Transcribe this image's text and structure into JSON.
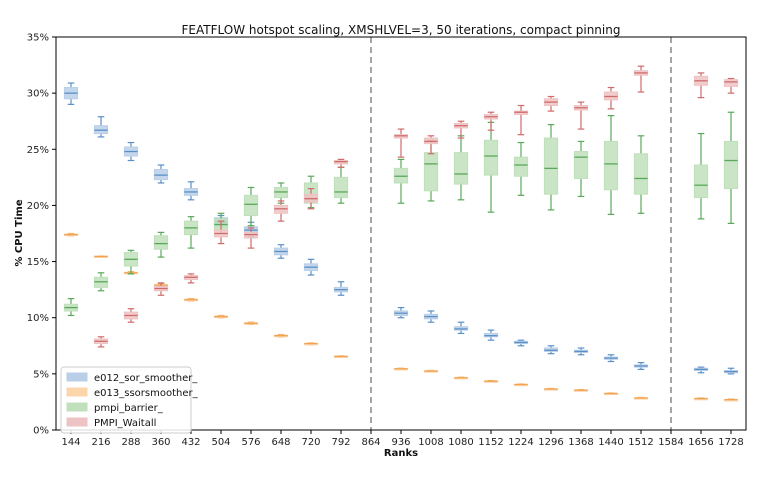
{
  "chart_data": {
    "type": "box",
    "title": "FEATFLOW hotspot scaling, XMSHLVEL=3, 50 iterations, compact pinning",
    "xlabel": "Ranks",
    "ylabel": "% CPU Time",
    "categories": [
      "144",
      "216",
      "288",
      "360",
      "432",
      "504",
      "576",
      "648",
      "720",
      "792",
      "864",
      "936",
      "1008",
      "1080",
      "1152",
      "1224",
      "1296",
      "1368",
      "1440",
      "1512",
      "1584",
      "1656",
      "1728"
    ],
    "ylim": [
      0,
      35
    ],
    "yticks": [
      0,
      5,
      10,
      15,
      20,
      25,
      30,
      35
    ],
    "ytick_labels": [
      "0%",
      "5%",
      "10%",
      "15%",
      "20%",
      "25%",
      "30%",
      "35%"
    ],
    "vertical_dashed_lines_at": [
      "864",
      "1584"
    ],
    "legend_position": "bottom-left",
    "series": [
      {
        "name": "e012_sor_smoother_",
        "color": "#5b8fc7",
        "fill": "#b9cfe8",
        "boxes": [
          {
            "x": "144",
            "whislo": 29.0,
            "q1": 29.5,
            "med": 30.0,
            "q3": 30.5,
            "whishi": 30.9
          },
          {
            "x": "216",
            "whislo": 26.1,
            "q1": 26.4,
            "med": 26.7,
            "q3": 27.1,
            "whishi": 27.9
          },
          {
            "x": "288",
            "whislo": 24.0,
            "q1": 24.4,
            "med": 24.8,
            "q3": 25.2,
            "whishi": 25.6
          },
          {
            "x": "360",
            "whislo": 22.0,
            "q1": 22.3,
            "med": 22.7,
            "q3": 23.2,
            "whishi": 23.6
          },
          {
            "x": "432",
            "whislo": 20.5,
            "q1": 20.9,
            "med": 21.2,
            "q3": 21.5,
            "whishi": 22.1
          },
          {
            "x": "504",
            "whislo": 17.8,
            "q1": 18.1,
            "med": 18.5,
            "q3": 18.9,
            "whishi": 19.1
          },
          {
            "x": "576",
            "whislo": 17.2,
            "q1": 17.5,
            "med": 17.8,
            "q3": 18.1,
            "whishi": 18.5
          },
          {
            "x": "648",
            "whislo": 15.3,
            "q1": 15.6,
            "med": 15.9,
            "q3": 16.2,
            "whishi": 16.5
          },
          {
            "x": "720",
            "whislo": 13.8,
            "q1": 14.2,
            "med": 14.5,
            "q3": 14.8,
            "whishi": 15.2
          },
          {
            "x": "792",
            "whislo": 12.0,
            "q1": 12.3,
            "med": 12.5,
            "q3": 12.7,
            "whishi": 13.2
          },
          {
            "x": "936",
            "whislo": 10.0,
            "q1": 10.2,
            "med": 10.4,
            "q3": 10.6,
            "whishi": 10.9
          },
          {
            "x": "1008",
            "whislo": 9.6,
            "q1": 9.9,
            "med": 10.1,
            "q3": 10.3,
            "whishi": 10.6
          },
          {
            "x": "1080",
            "whislo": 8.6,
            "q1": 8.9,
            "med": 9.0,
            "q3": 9.2,
            "whishi": 9.6
          },
          {
            "x": "1152",
            "whislo": 8.0,
            "q1": 8.3,
            "med": 8.4,
            "q3": 8.6,
            "whishi": 8.9
          },
          {
            "x": "1224",
            "whislo": 7.5,
            "q1": 7.7,
            "med": 7.8,
            "q3": 7.9,
            "whishi": 8.0
          },
          {
            "x": "1296",
            "whislo": 6.8,
            "q1": 7.0,
            "med": 7.1,
            "q3": 7.3,
            "whishi": 7.5
          },
          {
            "x": "1368",
            "whislo": 6.7,
            "q1": 6.9,
            "med": 7.0,
            "q3": 7.1,
            "whishi": 7.3
          },
          {
            "x": "1440",
            "whislo": 6.1,
            "q1": 6.3,
            "med": 6.4,
            "q3": 6.5,
            "whishi": 6.7
          },
          {
            "x": "1512",
            "whislo": 5.4,
            "q1": 5.6,
            "med": 5.7,
            "q3": 5.8,
            "whishi": 6.0
          },
          {
            "x": "1656",
            "whislo": 5.1,
            "q1": 5.3,
            "med": 5.4,
            "q3": 5.5,
            "whishi": 5.6
          },
          {
            "x": "1728",
            "whislo": 5.0,
            "q1": 5.1,
            "med": 5.2,
            "q3": 5.3,
            "whishi": 5.5
          }
        ]
      },
      {
        "name": "e013_ssorsmoother_",
        "color": "#f0a24e",
        "fill": "#fcd5ad",
        "boxes": [
          {
            "x": "144",
            "whislo": 17.3,
            "q1": 17.35,
            "med": 17.4,
            "q3": 17.45,
            "whishi": 17.5
          },
          {
            "x": "216",
            "whislo": 15.4,
            "q1": 15.42,
            "med": 15.45,
            "q3": 15.5,
            "whishi": 15.5
          },
          {
            "x": "288",
            "whislo": 13.9,
            "q1": 13.95,
            "med": 14.0,
            "q3": 14.05,
            "whishi": 14.1
          },
          {
            "x": "360",
            "whislo": 12.8,
            "q1": 12.85,
            "med": 12.9,
            "q3": 12.95,
            "whishi": 13.0
          },
          {
            "x": "432",
            "whislo": 11.5,
            "q1": 11.55,
            "med": 11.6,
            "q3": 11.65,
            "whishi": 11.7
          },
          {
            "x": "504",
            "whislo": 10.0,
            "q1": 10.05,
            "med": 10.1,
            "q3": 10.15,
            "whishi": 10.2
          },
          {
            "x": "576",
            "whislo": 9.4,
            "q1": 9.45,
            "med": 9.5,
            "q3": 9.55,
            "whishi": 9.6
          },
          {
            "x": "648",
            "whislo": 8.3,
            "q1": 8.35,
            "med": 8.4,
            "q3": 8.45,
            "whishi": 8.5
          },
          {
            "x": "720",
            "whislo": 7.6,
            "q1": 7.65,
            "med": 7.7,
            "q3": 7.72,
            "whishi": 7.75
          },
          {
            "x": "792",
            "whislo": 6.5,
            "q1": 6.52,
            "med": 6.55,
            "q3": 6.58,
            "whishi": 6.6
          },
          {
            "x": "936",
            "whislo": 5.4,
            "q1": 5.42,
            "med": 5.45,
            "q3": 5.48,
            "whishi": 5.5
          },
          {
            "x": "1008",
            "whislo": 5.2,
            "q1": 5.22,
            "med": 5.25,
            "q3": 5.28,
            "whishi": 5.3
          },
          {
            "x": "1080",
            "whislo": 4.6,
            "q1": 4.62,
            "med": 4.65,
            "q3": 4.68,
            "whishi": 4.7
          },
          {
            "x": "1152",
            "whislo": 4.3,
            "q1": 4.32,
            "med": 4.35,
            "q3": 4.38,
            "whishi": 4.4
          },
          {
            "x": "1224",
            "whislo": 4.0,
            "q1": 4.02,
            "med": 4.05,
            "q3": 4.08,
            "whishi": 4.1
          },
          {
            "x": "1296",
            "whislo": 3.6,
            "q1": 3.62,
            "med": 3.65,
            "q3": 3.68,
            "whishi": 3.7
          },
          {
            "x": "1368",
            "whislo": 3.5,
            "q1": 3.52,
            "med": 3.55,
            "q3": 3.58,
            "whishi": 3.6
          },
          {
            "x": "1440",
            "whislo": 3.2,
            "q1": 3.22,
            "med": 3.25,
            "q3": 3.28,
            "whishi": 3.3
          },
          {
            "x": "1512",
            "whislo": 2.8,
            "q1": 2.82,
            "med": 2.85,
            "q3": 2.88,
            "whishi": 2.9
          },
          {
            "x": "1656",
            "whislo": 2.75,
            "q1": 2.77,
            "med": 2.8,
            "q3": 2.82,
            "whishi": 2.85
          },
          {
            "x": "1728",
            "whislo": 2.65,
            "q1": 2.67,
            "med": 2.7,
            "q3": 2.72,
            "whishi": 2.75
          }
        ]
      },
      {
        "name": "pmpi_barrier_",
        "color": "#5aa85a",
        "fill": "#bfe0bb",
        "boxes": [
          {
            "x": "144",
            "whislo": 10.2,
            "q1": 10.6,
            "med": 10.9,
            "q3": 11.2,
            "whishi": 11.7
          },
          {
            "x": "216",
            "whislo": 12.4,
            "q1": 12.7,
            "med": 13.2,
            "q3": 13.6,
            "whishi": 14.0
          },
          {
            "x": "288",
            "whislo": 13.9,
            "q1": 14.6,
            "med": 15.2,
            "q3": 15.8,
            "whishi": 16.0
          },
          {
            "x": "360",
            "whislo": 15.4,
            "q1": 16.1,
            "med": 16.6,
            "q3": 17.3,
            "whishi": 17.6
          },
          {
            "x": "432",
            "whislo": 16.2,
            "q1": 17.4,
            "med": 18.0,
            "q3": 18.6,
            "whishi": 19.0
          },
          {
            "x": "504",
            "whislo": 17.5,
            "q1": 17.8,
            "med": 18.3,
            "q3": 18.8,
            "whishi": 19.3
          },
          {
            "x": "576",
            "whislo": 18.2,
            "q1": 19.1,
            "med": 20.1,
            "q3": 20.9,
            "whishi": 21.6
          },
          {
            "x": "648",
            "whislo": 20.2,
            "q1": 20.7,
            "med": 21.2,
            "q3": 21.6,
            "whishi": 22.0
          },
          {
            "x": "720",
            "whislo": 19.8,
            "q1": 20.2,
            "med": 20.6,
            "q3": 22.0,
            "whishi": 22.6
          },
          {
            "x": "792",
            "whislo": 20.2,
            "q1": 20.7,
            "med": 21.2,
            "q3": 22.5,
            "whishi": 23.4
          },
          {
            "x": "936",
            "whislo": 20.2,
            "q1": 22.0,
            "med": 22.6,
            "q3": 23.3,
            "whishi": 24.1
          },
          {
            "x": "1008",
            "whislo": 20.4,
            "q1": 21.3,
            "med": 23.7,
            "q3": 24.7,
            "whishi": 25.8
          },
          {
            "x": "1080",
            "whislo": 20.5,
            "q1": 21.9,
            "med": 22.8,
            "q3": 24.7,
            "whishi": 26.2
          },
          {
            "x": "1152",
            "whislo": 19.4,
            "q1": 22.7,
            "med": 24.4,
            "q3": 25.8,
            "whishi": 27.4
          },
          {
            "x": "1224",
            "whislo": 20.9,
            "q1": 22.6,
            "med": 23.6,
            "q3": 24.3,
            "whishi": 25.6
          },
          {
            "x": "1296",
            "whislo": 19.6,
            "q1": 21.0,
            "med": 23.3,
            "q3": 26.0,
            "whishi": 27.2
          },
          {
            "x": "1368",
            "whislo": 20.8,
            "q1": 22.4,
            "med": 24.3,
            "q3": 24.8,
            "whishi": 25.7
          },
          {
            "x": "1440",
            "whislo": 19.2,
            "q1": 21.4,
            "med": 23.7,
            "q3": 25.7,
            "whishi": 28.0
          },
          {
            "x": "1512",
            "whislo": 19.3,
            "q1": 21.0,
            "med": 22.4,
            "q3": 24.6,
            "whishi": 26.2
          },
          {
            "x": "1656",
            "whislo": 18.8,
            "q1": 20.7,
            "med": 21.8,
            "q3": 23.6,
            "whishi": 26.4
          },
          {
            "x": "1728",
            "whislo": 18.4,
            "q1": 21.5,
            "med": 24.0,
            "q3": 25.7,
            "whishi": 28.3
          }
        ]
      },
      {
        "name": "PMPI_Waitall",
        "color": "#d06b6b",
        "fill": "#eec3c3",
        "boxes": [
          {
            "x": "216",
            "whislo": 7.4,
            "q1": 7.7,
            "med": 7.9,
            "q3": 8.1,
            "whishi": 8.3
          },
          {
            "x": "288",
            "whislo": 9.6,
            "q1": 9.9,
            "med": 10.2,
            "q3": 10.5,
            "whishi": 10.8
          },
          {
            "x": "360",
            "whislo": 12.0,
            "q1": 12.4,
            "med": 12.6,
            "q3": 12.8,
            "whishi": 13.1
          },
          {
            "x": "432",
            "whislo": 13.1,
            "q1": 13.4,
            "med": 13.6,
            "q3": 13.75,
            "whishi": 13.9
          },
          {
            "x": "504",
            "whislo": 16.6,
            "q1": 17.2,
            "med": 17.5,
            "q3": 17.8,
            "whishi": 18.6
          },
          {
            "x": "576",
            "whislo": 16.2,
            "q1": 17.1,
            "med": 17.4,
            "q3": 17.6,
            "whishi": 18.0
          },
          {
            "x": "648",
            "whislo": 18.6,
            "q1": 19.3,
            "med": 19.7,
            "q3": 20.0,
            "whishi": 20.4
          },
          {
            "x": "720",
            "whislo": 19.7,
            "q1": 20.3,
            "med": 20.6,
            "q3": 21.0,
            "whishi": 21.5
          },
          {
            "x": "792",
            "whislo": 23.4,
            "q1": 23.7,
            "med": 23.9,
            "q3": 24.0,
            "whishi": 24.1
          },
          {
            "x": "936",
            "whislo": 24.3,
            "q1": 26.0,
            "med": 26.2,
            "q3": 26.3,
            "whishi": 26.8
          },
          {
            "x": "1008",
            "whislo": 24.6,
            "q1": 25.5,
            "med": 25.7,
            "q3": 26.0,
            "whishi": 26.2
          },
          {
            "x": "1080",
            "whislo": 26.0,
            "q1": 26.9,
            "med": 27.1,
            "q3": 27.3,
            "whishi": 27.5
          },
          {
            "x": "1152",
            "whislo": 26.7,
            "q1": 27.7,
            "med": 27.9,
            "q3": 28.1,
            "whishi": 28.3
          },
          {
            "x": "1224",
            "whislo": 26.3,
            "q1": 28.1,
            "med": 28.3,
            "q3": 28.4,
            "whishi": 28.9
          },
          {
            "x": "1296",
            "whislo": 28.4,
            "q1": 28.9,
            "med": 29.2,
            "q3": 29.5,
            "whishi": 29.7
          },
          {
            "x": "1368",
            "whislo": 26.8,
            "q1": 28.5,
            "med": 28.7,
            "q3": 28.9,
            "whishi": 29.2
          },
          {
            "x": "1440",
            "whislo": 28.6,
            "q1": 29.4,
            "med": 29.7,
            "q3": 30.1,
            "whishi": 30.5
          },
          {
            "x": "1512",
            "whislo": 30.1,
            "q1": 31.6,
            "med": 31.8,
            "q3": 32.0,
            "whishi": 32.4
          },
          {
            "x": "1656",
            "whislo": 29.6,
            "q1": 30.7,
            "med": 31.1,
            "q3": 31.5,
            "whishi": 31.8
          },
          {
            "x": "1728",
            "whislo": 30.0,
            "q1": 30.6,
            "med": 31.0,
            "q3": 31.2,
            "whishi": 31.3
          }
        ]
      }
    ]
  }
}
